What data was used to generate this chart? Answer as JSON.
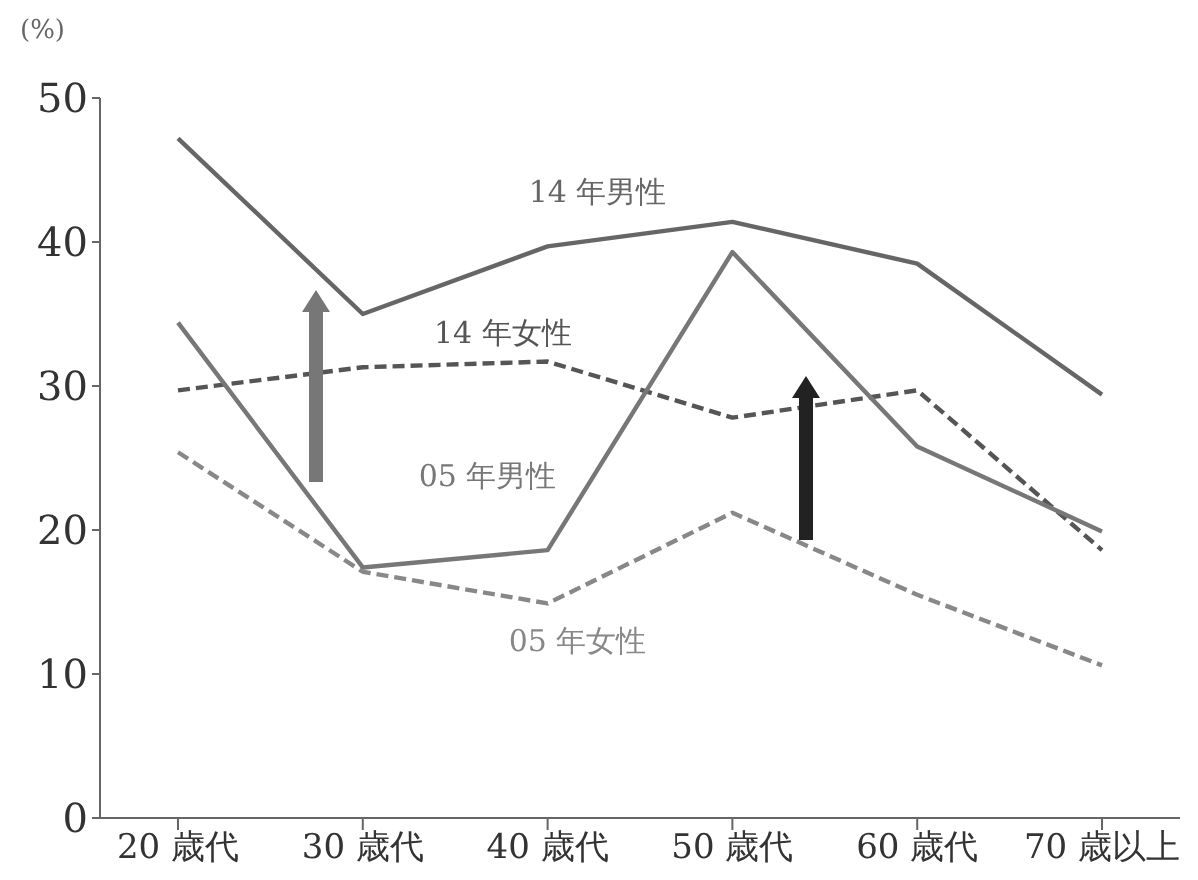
{
  "chart_data": {
    "type": "line",
    "ylabel": "(%)",
    "categories": [
      "20 歳代",
      "30 歳代",
      "40 歳代",
      "50 歳代",
      "60 歳代",
      "70 歳以上"
    ],
    "series": [
      {
        "name": "14 年男性",
        "color": "#666666",
        "line_style": "solid",
        "values": [
          47.2,
          35.0,
          39.7,
          41.4,
          38.5,
          29.4
        ]
      },
      {
        "name": "14 年女性",
        "color": "#555555",
        "line_style": "dashed",
        "values": [
          29.7,
          31.3,
          31.7,
          27.8,
          29.7,
          18.6
        ]
      },
      {
        "name": "05 年男性",
        "color": "#777777",
        "line_style": "solid",
        "values": [
          34.4,
          17.4,
          18.6,
          39.3,
          25.8,
          19.9
        ]
      },
      {
        "name": "05 年女性",
        "color": "#888888",
        "line_style": "dashed",
        "values": [
          25.4,
          17.1,
          14.9,
          21.2,
          15.5,
          10.6
        ]
      }
    ],
    "ylim": [
      0,
      50
    ],
    "yticks": [
      0,
      10,
      20,
      30,
      40,
      50
    ],
    "grid": false,
    "legend": false,
    "marker": "none"
  }
}
